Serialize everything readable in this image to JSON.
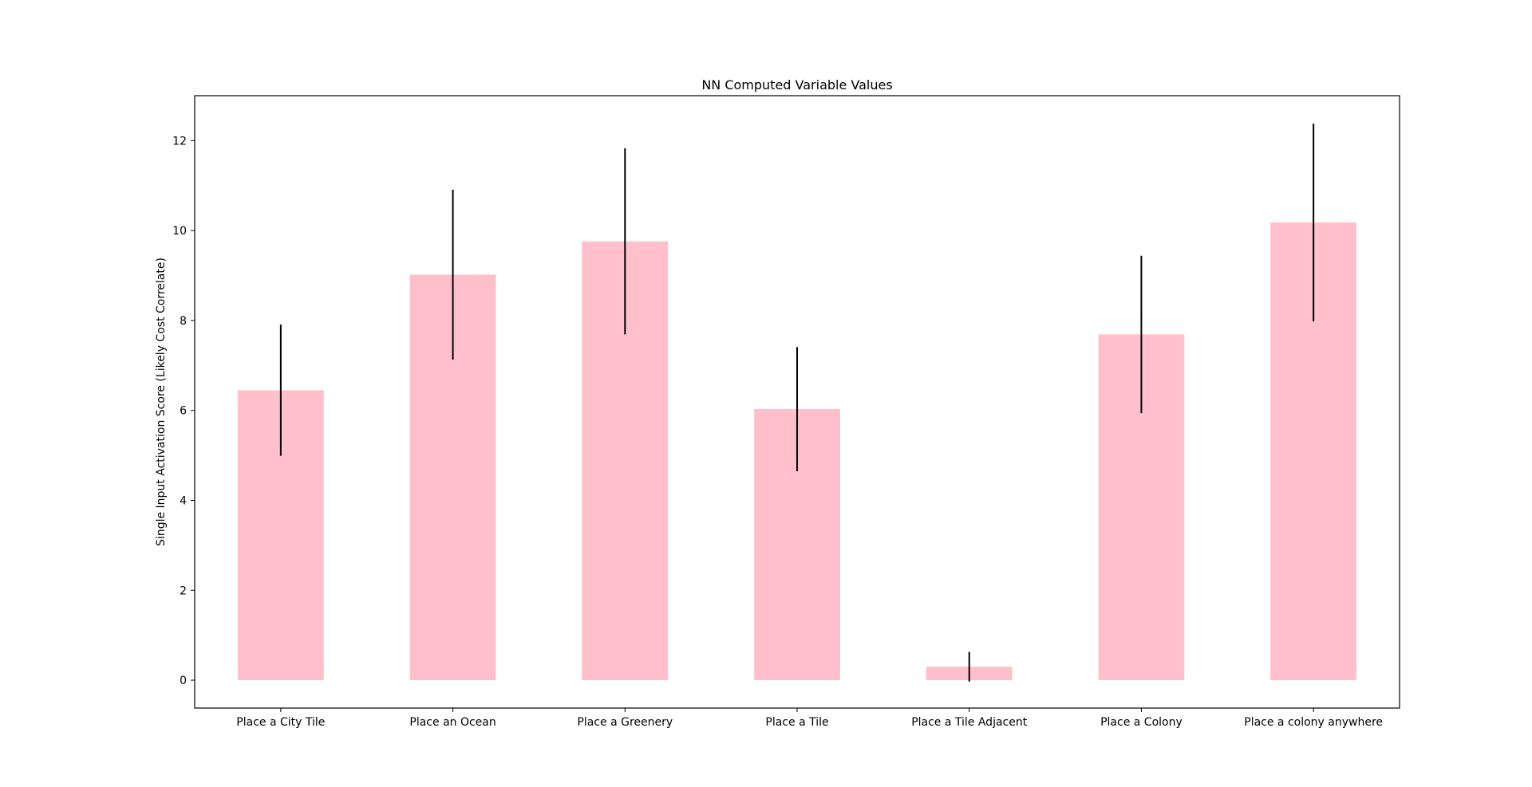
{
  "chart_data": {
    "type": "bar",
    "title": "NN Computed Variable Values",
    "xlabel": "",
    "ylabel": "Single Input Activation Score (Likely Cost Correlate)",
    "categories": [
      "Place a City Tile",
      "Place an Ocean",
      "Place a Greenery",
      "Place a Tile",
      "Place a Tile Adjacent",
      "Place a Colony",
      "Place a colony anywhere"
    ],
    "values": [
      6.45,
      9.02,
      9.76,
      6.03,
      0.3,
      7.69,
      10.18
    ],
    "error": [
      1.46,
      1.89,
      2.07,
      1.38,
      0.33,
      1.75,
      2.2
    ],
    "ylim": [
      -0.62,
      13.0
    ],
    "yticks": [
      0,
      2,
      4,
      6,
      8,
      10,
      12
    ],
    "grid": false,
    "colors": {
      "bar": "#ffc0cb",
      "errorbar": "#000000",
      "axes": "#000000"
    }
  }
}
